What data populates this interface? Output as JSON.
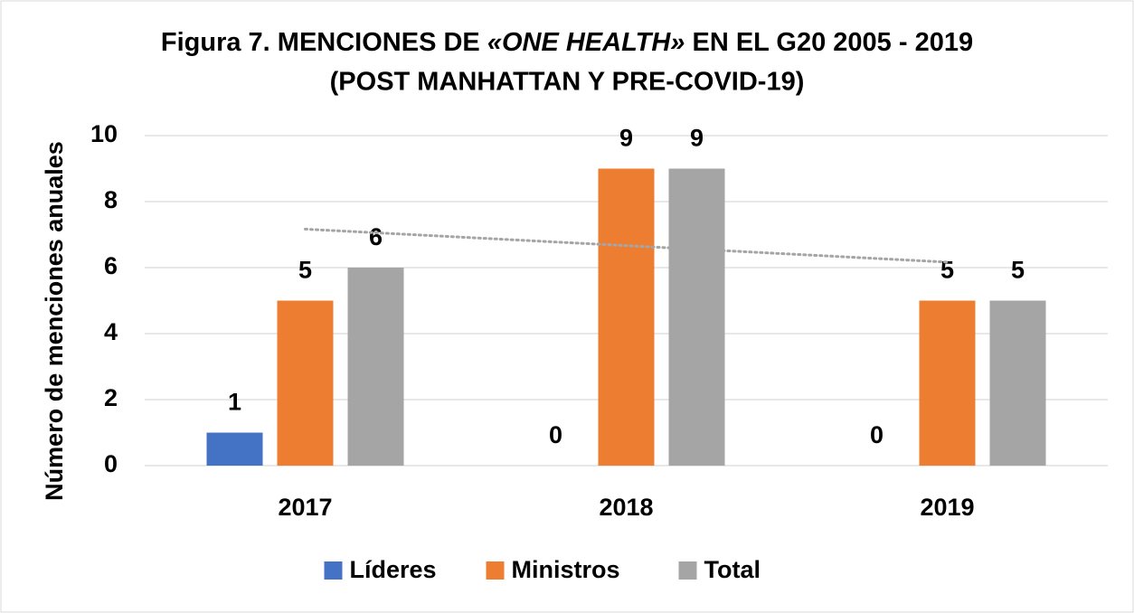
{
  "chart_data": {
    "type": "bar",
    "title": [
      "Figura 7. MENCIONES DE ",
      "«ONE HEALTH»",
      " EN EL G20 2005 - 2019"
    ],
    "subtitle": "(POST MANHATTAN Y PRE-COVID-19)",
    "ylabel": "Número de menciones anuales",
    "categories": [
      "2017",
      "2018",
      "2019"
    ],
    "series": [
      {
        "name": "Líderes",
        "color": "#4472c4",
        "values": [
          1,
          0,
          0
        ]
      },
      {
        "name": "Ministros",
        "color": "#ed7d31",
        "values": [
          5,
          9,
          5
        ]
      },
      {
        "name": "Total",
        "color": "#a5a5a5",
        "values": [
          6,
          9,
          5
        ]
      }
    ],
    "ylim": [
      0,
      10
    ],
    "yticks": [
      0,
      2,
      4,
      6,
      8,
      10
    ],
    "grid": true,
    "data_labels": true,
    "trendline": true,
    "legend": "bottom"
  }
}
